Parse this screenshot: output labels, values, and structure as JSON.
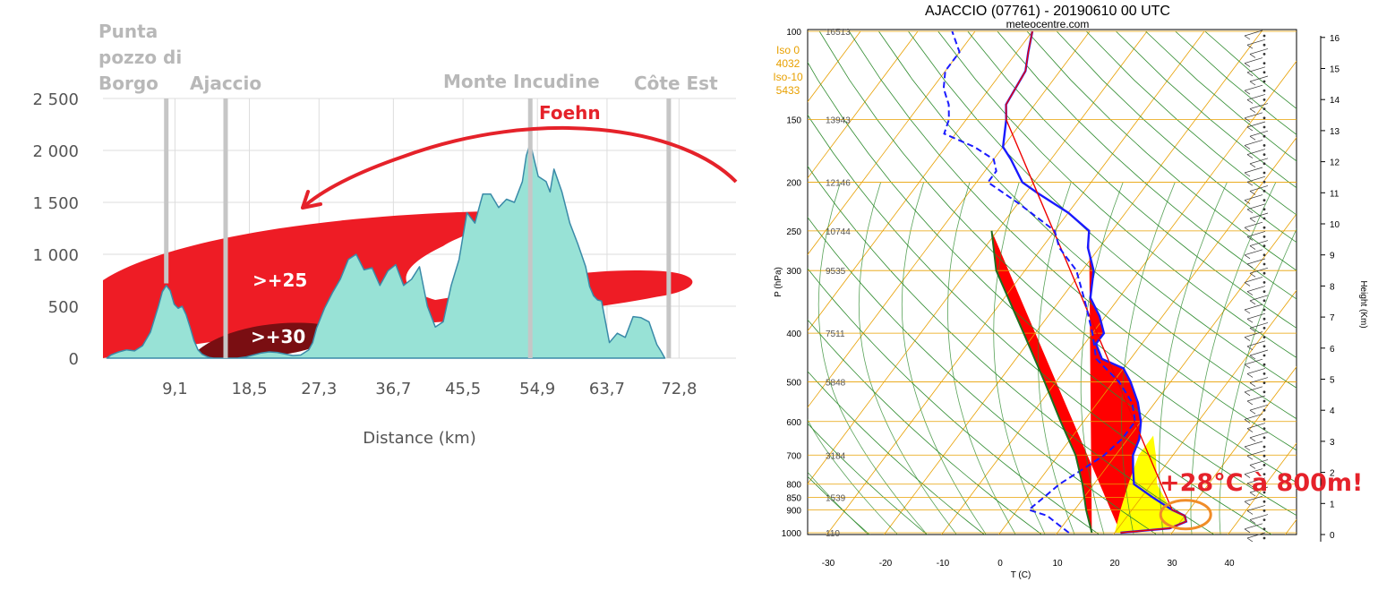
{
  "chart_data": [
    {
      "type": "area",
      "xlabel": "Distance (km)",
      "ylabel": "",
      "xlim": [
        0,
        80
      ],
      "ylim": [
        0,
        2500
      ],
      "x_ticks": [
        "9,1",
        "18,5",
        "27,3",
        "36,7",
        "45,5",
        "54,9",
        "63,7",
        "72,8"
      ],
      "x_tick_values": [
        9.1,
        18.5,
        27.3,
        36.7,
        45.5,
        54.9,
        63.7,
        72.8
      ],
      "y_ticks": [
        "0",
        "500",
        "1 000",
        "1 500",
        "2 000",
        "2 500"
      ],
      "y_tick_values": [
        0,
        500,
        1000,
        1500,
        2000,
        2500
      ],
      "locations": [
        {
          "lines": [
            "Punta",
            "pozzo di",
            "Borgo"
          ],
          "x": 8.0
        },
        {
          "lines": [
            "Ajaccio"
          ],
          "x": 15.5
        },
        {
          "lines": [
            "Monte Incudine"
          ],
          "x": 54.0
        },
        {
          "lines": [
            "Côte Est"
          ],
          "x": 71.5
        }
      ],
      "annotations": {
        "foehn": "Foehn",
        "anomaly_25": ">+25",
        "anomaly_30": ">+30"
      },
      "colors": {
        "terrain": "#98e2d6",
        "terrain_line": "#3a8aa8",
        "anomaly_25": "#ee1c25",
        "anomaly_30": "#7a0e12",
        "arrow": "#e5222a",
        "grid": "#dddddd"
      },
      "terrain": {
        "x": [
          0.5,
          1,
          2,
          3,
          4,
          5,
          6,
          7,
          7.5,
          8,
          8.5,
          9,
          9.5,
          10,
          10.5,
          11,
          11.5,
          12,
          12.5,
          13,
          13.5,
          14,
          15,
          16,
          17,
          18,
          19,
          20,
          21,
          22,
          23,
          24,
          25,
          26,
          26.5,
          27,
          28,
          29,
          30,
          31,
          32,
          33,
          34,
          35,
          36,
          37,
          38,
          39,
          40,
          41,
          42,
          43,
          44,
          45,
          46,
          47,
          48,
          49,
          50,
          51,
          52,
          53,
          53.5,
          54,
          55,
          56,
          56.5,
          57,
          58,
          59,
          60,
          61,
          61.5,
          62,
          62.5,
          63,
          64,
          65,
          66,
          67,
          68,
          69,
          70,
          70.5,
          71
        ],
        "y": [
          0,
          30,
          60,
          80,
          70,
          120,
          250,
          500,
          640,
          700,
          650,
          520,
          480,
          500,
          420,
          300,
          170,
          80,
          40,
          20,
          5,
          0,
          0,
          0,
          0,
          10,
          30,
          50,
          60,
          55,
          40,
          25,
          30,
          80,
          150,
          290,
          480,
          630,
          760,
          950,
          1000,
          850,
          870,
          700,
          840,
          900,
          700,
          760,
          880,
          500,
          300,
          350,
          700,
          950,
          1400,
          1300,
          1580,
          1580,
          1450,
          1530,
          1500,
          1700,
          1950,
          2070,
          1750,
          1700,
          1600,
          1820,
          1600,
          1300,
          1100,
          880,
          690,
          600,
          560,
          550,
          150,
          240,
          200,
          400,
          390,
          350,
          130,
          70,
          0
        ]
      }
    },
    {
      "type": "line",
      "title": "AJACCIO (07761) - 20190610 00 UTC",
      "subtitle": "meteocentre.com",
      "xlabel": "T (C)",
      "ylabel": "P (hPa)",
      "right_label": "Height (Km)",
      "xlim": [
        -35,
        50
      ],
      "y_scale": "log",
      "ylim": [
        1050,
        100
      ],
      "x_ticks": [
        "-30",
        "-20",
        "-10",
        "0",
        "10",
        "20",
        "30",
        "40"
      ],
      "x_tick_values": [
        -30,
        -20,
        -10,
        0,
        10,
        20,
        30,
        40
      ],
      "y_ticks": [
        "100",
        "150",
        "200",
        "250",
        "300",
        "400",
        "500",
        "600",
        "700",
        "800",
        "850",
        "900",
        "1000"
      ],
      "y_tick_values": [
        100,
        150,
        200,
        250,
        300,
        400,
        500,
        600,
        700,
        800,
        850,
        900,
        1000
      ],
      "heights_m": [
        "16513",
        "13943",
        "12146",
        "10744",
        "9535",
        "7511",
        "5848",
        "3184",
        "1539",
        "110"
      ],
      "height_pressures": [
        100,
        150,
        200,
        250,
        300,
        400,
        500,
        700,
        850,
        1000
      ],
      "height_km_ticks": [
        "0",
        "1",
        "2",
        "3",
        "4",
        "5",
        "6",
        "7",
        "8",
        "9",
        "10",
        "11",
        "12",
        "13",
        "14",
        "15",
        "16"
      ],
      "iso_info": [
        "Iso 0",
        "4032",
        "Iso-10",
        "5433"
      ],
      "annotation": "+28°C à 800m!",
      "colors": {
        "temperature": "#1a1aff",
        "temp_red": "#ee0000",
        "dewpoint": "#1a1aff",
        "cape_red": "#ff0000",
        "cape_yellow": "#ffff00",
        "isotherm": "#e8a000",
        "dry_adiabat": "#2e8b2e",
        "moist_adiabat": "#2e8b2e",
        "highlight": "#f08c28",
        "annotation": "#e5222a"
      },
      "series": [
        {
          "values": [
            [
              1000,
              21
            ],
            [
              980,
              29
            ],
            [
              950,
              31
            ],
            [
              925,
              30
            ],
            [
              900,
              27
            ],
            [
              850,
              22
            ],
            [
              800,
              17
            ],
            [
              750,
              15
            ],
            [
              700,
              13
            ],
            [
              650,
              12
            ],
            [
              600,
              10
            ],
            [
              550,
              7
            ],
            [
              500,
              3
            ],
            [
              470,
              0
            ],
            [
              450,
              -5
            ],
            [
              420,
              -8
            ],
            [
              400,
              -8
            ],
            [
              370,
              -11
            ],
            [
              340,
              -15
            ],
            [
              300,
              -18
            ],
            [
              270,
              -22
            ],
            [
              250,
              -24
            ],
            [
              230,
              -30
            ],
            [
              210,
              -38
            ],
            [
              200,
              -42
            ],
            [
              180,
              -47
            ],
            [
              170,
              -50
            ],
            [
              150,
              -53
            ],
            [
              140,
              -55
            ],
            [
              120,
              -56
            ],
            [
              110,
              -58
            ],
            [
              100,
              -60
            ]
          ]
        },
        {
          "values": [
            [
              1000,
              12
            ],
            [
              950,
              8
            ],
            [
              925,
              6
            ],
            [
              900,
              2
            ],
            [
              850,
              3
            ],
            [
              800,
              4
            ],
            [
              750,
              6
            ],
            [
              700,
              8
            ],
            [
              650,
              9
            ],
            [
              600,
              9
            ],
            [
              550,
              6
            ],
            [
              500,
              1
            ],
            [
              450,
              -6
            ],
            [
              400,
              -10
            ],
            [
              350,
              -15
            ],
            [
              300,
              -21
            ],
            [
              270,
              -27
            ],
            [
              250,
              -30
            ],
            [
              220,
              -40
            ],
            [
              200,
              -48
            ],
            [
              190,
              -48
            ],
            [
              180,
              -50
            ],
            [
              170,
              -55
            ],
            [
              160,
              -62
            ],
            [
              150,
              -63
            ],
            [
              140,
              -65
            ],
            [
              130,
              -68
            ],
            [
              120,
              -70
            ],
            [
              110,
              -70
            ],
            [
              100,
              -74
            ]
          ]
        }
      ]
    }
  ]
}
